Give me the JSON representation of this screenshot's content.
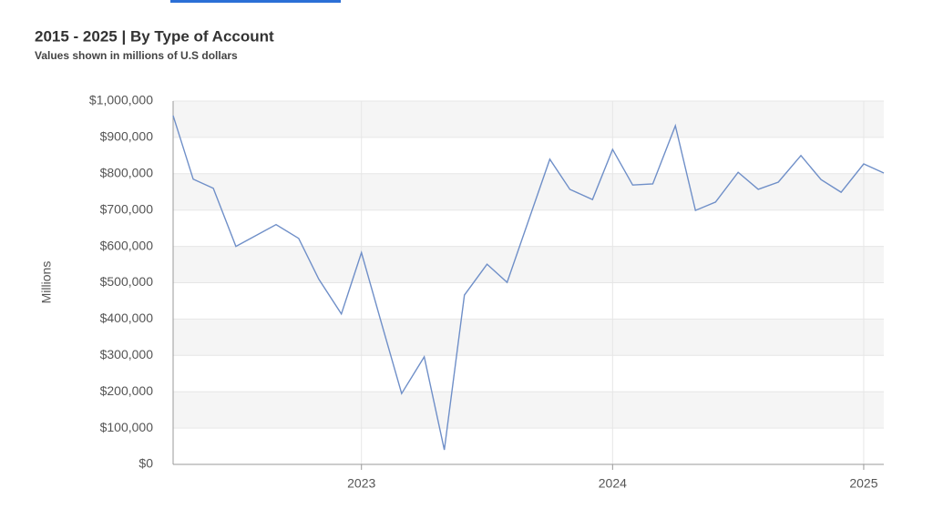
{
  "chart_data": {
    "type": "line",
    "title": "2015 - 2025 | By Type of Account",
    "subtitle": "Values shown in millions of U.S dollars",
    "y_label": "Millions",
    "x": [
      2022.25,
      2022.33,
      2022.41,
      2022.5,
      2022.66,
      2022.75,
      2022.83,
      2022.92,
      2023.0,
      2023.08,
      2023.16,
      2023.25,
      2023.33,
      2023.41,
      2023.5,
      2023.58,
      2023.75,
      2023.83,
      2023.92,
      2024.0,
      2024.08,
      2024.16,
      2024.25,
      2024.33,
      2024.41,
      2024.5,
      2024.58,
      2024.66,
      2024.75,
      2024.83,
      2024.91,
      2025.0,
      2025.08
    ],
    "series": [
      {
        "color": "#6f8fc8",
        "values": [
          960000,
          785000,
          760000,
          600000,
          660000,
          622000,
          510000,
          414000,
          583000,
          388000,
          195000,
          296000,
          40000,
          466000,
          551000,
          501000,
          840000,
          757000,
          729000,
          867000,
          769000,
          772000,
          932000,
          699000,
          722000,
          804000,
          757000,
          777000,
          850000,
          784000,
          749000,
          827000,
          802000
        ]
      }
    ],
    "xlim": [
      2022.25,
      2025.08
    ],
    "xticks": [
      2023,
      2024,
      2025
    ],
    "ylim": [
      0,
      1000000
    ],
    "yticks": [
      {
        "value": 0,
        "label": "$0"
      },
      {
        "value": 100000,
        "label": "$100,000"
      },
      {
        "value": 200000,
        "label": "$200,000"
      },
      {
        "value": 300000,
        "label": "$300,000"
      },
      {
        "value": 400000,
        "label": "$400,000"
      },
      {
        "value": 500000,
        "label": "$500,000"
      },
      {
        "value": 600000,
        "label": "$600,000"
      },
      {
        "value": 700000,
        "label": "$700,000"
      },
      {
        "value": 800000,
        "label": "$800,000"
      },
      {
        "value": 900000,
        "label": "$900,000"
      },
      {
        "value": 1000000,
        "label": "$1,000,000"
      }
    ],
    "grid": true
  }
}
